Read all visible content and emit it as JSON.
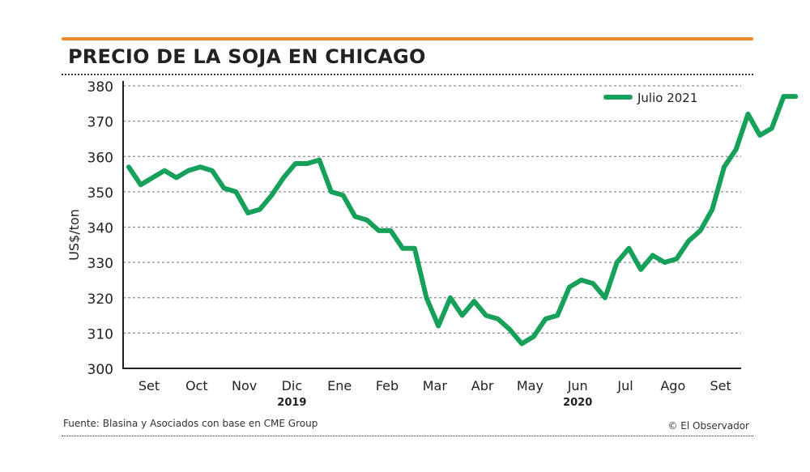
{
  "header": {
    "title": "PRECIO DE LA SOJA EN CHICAGO"
  },
  "footer": {
    "source": "Fuente: Blasina y Asociados con base en CME Group",
    "credit": "© El Observador"
  },
  "colors": {
    "accent_rule": "#e8872e",
    "series": "#16a05a",
    "grid": "#8a8a8a",
    "text": "#222222"
  },
  "chart_data": {
    "type": "line",
    "title": "PRECIO DE LA SOJA EN CHICAGO",
    "ylabel": "US$/ton",
    "xlabel": "",
    "ylim": [
      300,
      380
    ],
    "yticks": [
      300,
      310,
      320,
      330,
      340,
      350,
      360,
      370,
      380
    ],
    "grid": true,
    "legend": {
      "position": "top-right",
      "entries": [
        "Julio 2021"
      ]
    },
    "x_month_labels": [
      "Set",
      "Oct",
      "Nov",
      "Dic",
      "Ene",
      "Feb",
      "Mar",
      "Abr",
      "May",
      "Jun",
      "Jul",
      "Ago",
      "Set"
    ],
    "year_labels": [
      {
        "label": "2019",
        "month_index": 3
      },
      {
        "label": "2020",
        "month_index": 9
      }
    ],
    "series": [
      {
        "name": "Julio 2021",
        "color": "#16a05a",
        "x": [
          0,
          0.25,
          0.5,
          0.75,
          1,
          1.25,
          1.5,
          1.75,
          2,
          2.25,
          2.5,
          2.75,
          3,
          3.25,
          3.5,
          3.75,
          4,
          4.25,
          4.5,
          4.75,
          5,
          5.25,
          5.5,
          5.75,
          6,
          6.25,
          6.5,
          6.75,
          7,
          7.25,
          7.5,
          7.75,
          8,
          8.25,
          8.5,
          8.75,
          9,
          9.25,
          9.5,
          9.75,
          10,
          10.25,
          10.5,
          10.75,
          11,
          11.25,
          11.5,
          11.75,
          12,
          12.25
        ],
        "values": [
          357,
          352,
          354,
          356,
          354,
          356,
          357,
          356,
          351,
          350,
          344,
          345,
          349,
          354,
          358,
          358,
          359,
          350,
          349,
          343,
          342,
          339,
          339,
          334,
          334,
          320,
          312,
          320,
          315,
          319,
          315,
          314,
          311,
          307,
          309,
          314,
          315,
          323,
          325,
          324,
          320,
          330,
          334,
          328,
          332,
          330,
          331,
          336,
          339,
          345
        ]
      }
    ],
    "series_tail": {
      "x": [
        12.5,
        12.75,
        13,
        13.25,
        13.5,
        13.75,
        14
      ],
      "values": [
        357,
        362,
        372,
        366,
        368,
        377,
        377
      ]
    }
  }
}
